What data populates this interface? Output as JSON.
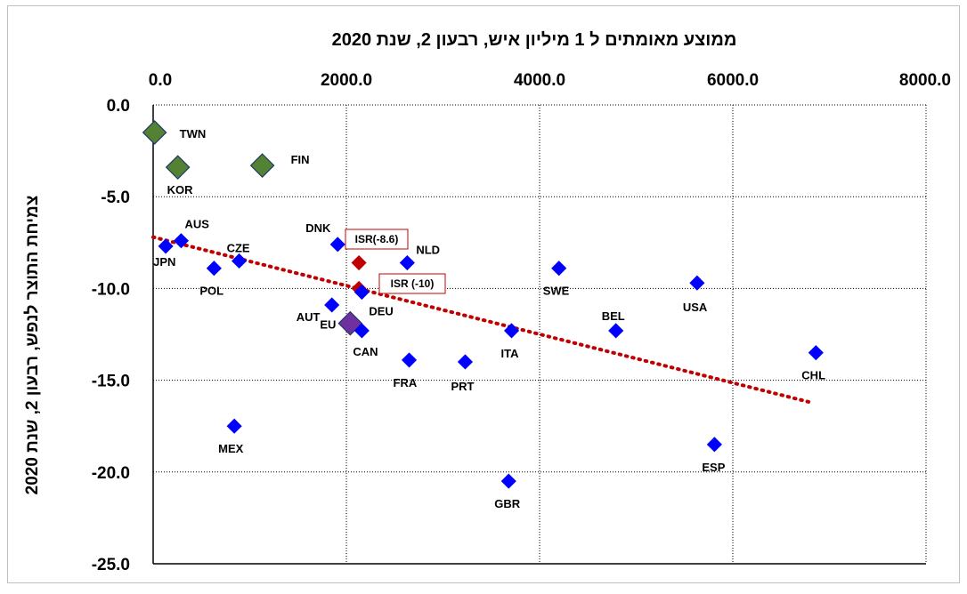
{
  "chart_data": {
    "type": "scatter",
    "title": "ממוצע מאומתים ל 1 מיליון איש, רבעון 2, שנת 2020",
    "xlabel": "",
    "ylabel": "צמיחת התוצר לנפש, רבעון 2, שנת 2020",
    "xlim": [
      0,
      8000
    ],
    "ylim": [
      -25,
      0
    ],
    "x_axis_position": "top",
    "x_ticks": [
      "0.0",
      "2000.0",
      "4000.0",
      "6000.0",
      "8000.0"
    ],
    "y_ticks": [
      "0.0",
      "-5.0",
      "-10.0",
      "-15.0",
      "-20.0",
      "-25.0"
    ],
    "grid": "dotted",
    "points": [
      {
        "label": "TWN",
        "x": 15,
        "y": -1.5,
        "color": "#548235",
        "marker": "large-diamond"
      },
      {
        "label": "KOR",
        "x": 255,
        "y": -3.4,
        "color": "#548235",
        "marker": "large-diamond"
      },
      {
        "label": "FIN",
        "x": 1130,
        "y": -3.3,
        "color": "#548235",
        "marker": "large-diamond"
      },
      {
        "label": "AUS",
        "x": 290,
        "y": -7.4,
        "color": "#0000ff",
        "marker": "diamond"
      },
      {
        "label": "JPN",
        "x": 130,
        "y": -7.7,
        "color": "#0000ff",
        "marker": "diamond"
      },
      {
        "label": "CZE",
        "x": 890,
        "y": -8.5,
        "color": "#0000ff",
        "marker": "diamond"
      },
      {
        "label": "POL",
        "x": 630,
        "y": -8.9,
        "color": "#0000ff",
        "marker": "diamond"
      },
      {
        "label": "DNK",
        "x": 1910,
        "y": -7.6,
        "color": "#0000ff",
        "marker": "diamond"
      },
      {
        "label": "ISR(-8.6)",
        "x": 2130,
        "y": -8.6,
        "color": "#c00000",
        "marker": "diamond",
        "callout": true
      },
      {
        "label": "ISR (-10)",
        "x": 2130,
        "y": -10.0,
        "color": "#c00000",
        "marker": "diamond",
        "callout": true
      },
      {
        "label": "NLD",
        "x": 2630,
        "y": -8.6,
        "color": "#0000ff",
        "marker": "diamond"
      },
      {
        "label": "DEU",
        "x": 2160,
        "y": -10.2,
        "color": "#0000ff",
        "marker": "diamond"
      },
      {
        "label": "AUT",
        "x": 1850,
        "y": -10.9,
        "color": "#0000ff",
        "marker": "diamond"
      },
      {
        "label": "EU",
        "x": 2040,
        "y": -11.9,
        "color": "#7030a0",
        "marker": "large-diamond"
      },
      {
        "label": "CAN",
        "x": 2160,
        "y": -12.3,
        "color": "#0000ff",
        "marker": "diamond"
      },
      {
        "label": "FRA",
        "x": 2650,
        "y": -13.9,
        "color": "#0000ff",
        "marker": "diamond"
      },
      {
        "label": "PRT",
        "x": 3230,
        "y": -14.0,
        "color": "#0000ff",
        "marker": "diamond"
      },
      {
        "label": "ITA",
        "x": 3710,
        "y": -12.3,
        "color": "#0000ff",
        "marker": "diamond"
      },
      {
        "label": "SWE",
        "x": 4200,
        "y": -8.9,
        "color": "#0000ff",
        "marker": "diamond"
      },
      {
        "label": "BEL",
        "x": 4790,
        "y": -12.3,
        "color": "#0000ff",
        "marker": "diamond"
      },
      {
        "label": "USA",
        "x": 5630,
        "y": -9.7,
        "color": "#0000ff",
        "marker": "diamond"
      },
      {
        "label": "CHL",
        "x": 6860,
        "y": -13.5,
        "color": "#0000ff",
        "marker": "diamond"
      },
      {
        "label": "MEX",
        "x": 840,
        "y": -17.5,
        "color": "#0000ff",
        "marker": "diamond"
      },
      {
        "label": "GBR",
        "x": 3680,
        "y": -20.5,
        "color": "#0000ff",
        "marker": "diamond"
      },
      {
        "label": "ESP",
        "x": 5810,
        "y": -18.5,
        "color": "#0000ff",
        "marker": "diamond"
      }
    ],
    "trendline": {
      "style": "dotted",
      "color": "#c00000",
      "from": [
        0,
        -7.2
      ],
      "to": [
        6800,
        -16.2
      ]
    }
  }
}
